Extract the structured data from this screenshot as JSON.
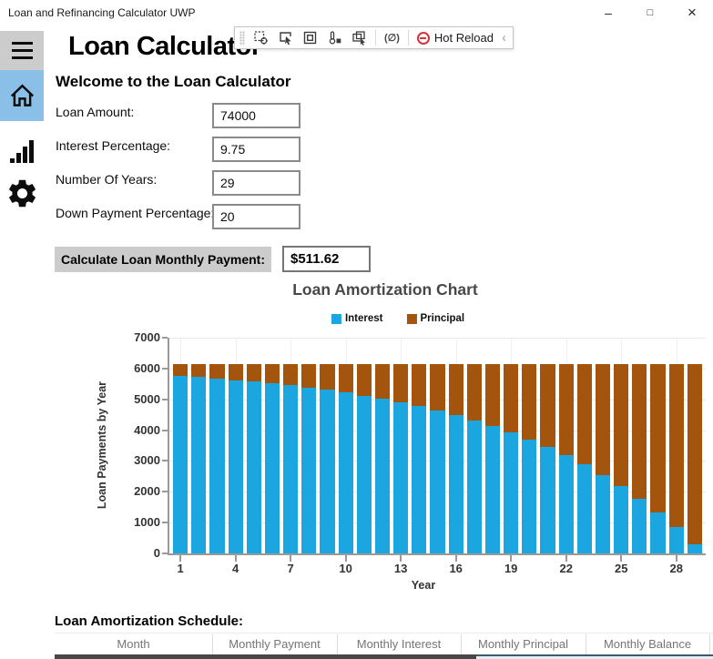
{
  "window": {
    "title": "Loan and Refinancing Calculator UWP",
    "minimize_glyph": "–",
    "maximize_glyph": "□",
    "close_glyph": "×"
  },
  "debug_toolbar": {
    "xaml_source_toggle_label": "(∅)",
    "hot_reload_label": "Hot Reload",
    "collapse_glyph": "‹",
    "icons": [
      "go-to-live-visual-tree",
      "select-element",
      "display-layout-adorners",
      "track-focused-element",
      "enable-selection",
      "show-my-xaml",
      "hot-reload",
      "collapse"
    ]
  },
  "sidebar": {
    "items": [
      {
        "name": "menu",
        "icon": "hamburger-icon",
        "selected": false
      },
      {
        "name": "home",
        "icon": "home-icon",
        "selected": true
      },
      {
        "name": "amortization-chart",
        "icon": "bar-chart-icon",
        "selected": false
      },
      {
        "name": "settings",
        "icon": "gear-icon",
        "selected": false
      }
    ]
  },
  "page": {
    "title": "Loan Calculator",
    "subtitle": "Welcome to the Loan Calculator"
  },
  "form": {
    "fields": [
      {
        "label": "Loan Amount:",
        "value": "74000"
      },
      {
        "label": "Interest Percentage:",
        "value": "9.75"
      },
      {
        "label": "Number Of Years:",
        "value": "29"
      },
      {
        "label": "Down Payment Percentage:",
        "value": "20"
      }
    ]
  },
  "calculate": {
    "button_label": "Calculate Loan Monthly Payment:",
    "result_value": "$511.62"
  },
  "chart_data": {
    "type": "bar",
    "stacked": true,
    "title": "Loan Amortization Chart",
    "xlabel": "Year",
    "ylabel": "Loan Payments by Year",
    "ylim": [
      0,
      7000
    ],
    "yticks": [
      0,
      1000,
      2000,
      3000,
      4000,
      5000,
      6000,
      7000
    ],
    "xticks": [
      1,
      4,
      7,
      10,
      13,
      16,
      19,
      22,
      25,
      28
    ],
    "grid": true,
    "legend_position": "top",
    "categories": [
      1,
      2,
      3,
      4,
      5,
      6,
      7,
      8,
      9,
      10,
      11,
      12,
      13,
      14,
      15,
      16,
      17,
      18,
      19,
      20,
      21,
      22,
      23,
      24,
      25,
      26,
      27,
      28,
      29
    ],
    "series": [
      {
        "name": "Interest",
        "color": "#1CA6E0",
        "values": [
          5755,
          5716,
          5673,
          5625,
          5573,
          5515,
          5451,
          5381,
          5304,
          5218,
          5124,
          5021,
          4907,
          4781,
          4642,
          4490,
          4321,
          4136,
          3932,
          3706,
          3458,
          3185,
          2883,
          2551,
          2185,
          1782,
          1337,
          847,
          308
        ]
      },
      {
        "name": "Principal",
        "color": "#A3540D",
        "values": [
          384,
          424,
          467,
          514,
          567,
          625,
          688,
          759,
          836,
          921,
          1015,
          1119,
          1233,
          1359,
          1497,
          1650,
          1818,
          2004,
          2208,
          2433,
          2681,
          2955,
          3256,
          3588,
          3954,
          4358,
          4802,
          5292,
          5832
        ]
      }
    ]
  },
  "schedule": {
    "heading": "Loan Amortization Schedule:",
    "columns": [
      "Month",
      "Monthly Payment",
      "Monthly Interest",
      "Monthly Principal",
      "Monthly Balance"
    ]
  },
  "colors": {
    "interest": "#1CA6E0",
    "principal": "#A3540D",
    "sidebar_selected": "#8AC0E8",
    "button_bg": "#CCCCCC",
    "hot_reload_red": "#D13438"
  }
}
